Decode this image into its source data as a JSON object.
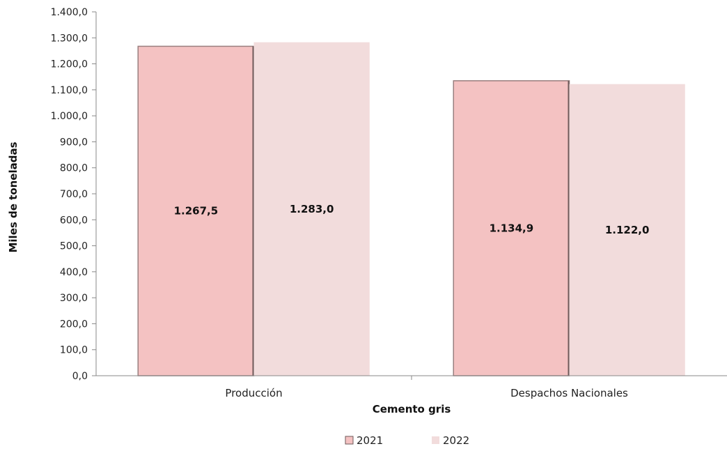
{
  "chart_data": {
    "type": "bar",
    "categories": [
      "Producción",
      "Despachos Nacionales"
    ],
    "series": [
      {
        "name": "2021",
        "values": [
          1267.5,
          1134.9
        ],
        "labels": [
          "1.267,5",
          "1.134,9"
        ],
        "color": "#f4c2c2"
      },
      {
        "name": "2022",
        "values": [
          1283.0,
          1122.0
        ],
        "labels": [
          "1.283,0",
          "1.122,0"
        ],
        "color": "#f2dcdc"
      }
    ],
    "xlabel": "Cemento gris",
    "ylabel": "Miles de toneladas",
    "ylim": [
      0,
      1400
    ],
    "ytick_step": 100,
    "yticks": [
      "0,0",
      "100,0",
      "200,0",
      "300,0",
      "400,0",
      "500,0",
      "600,0",
      "700,0",
      "800,0",
      "900,0",
      "1.000,0",
      "1.100,0",
      "1.200,0",
      "1.300,0",
      "1.400,0"
    ],
    "grid": false,
    "legend_position": "bottom"
  }
}
